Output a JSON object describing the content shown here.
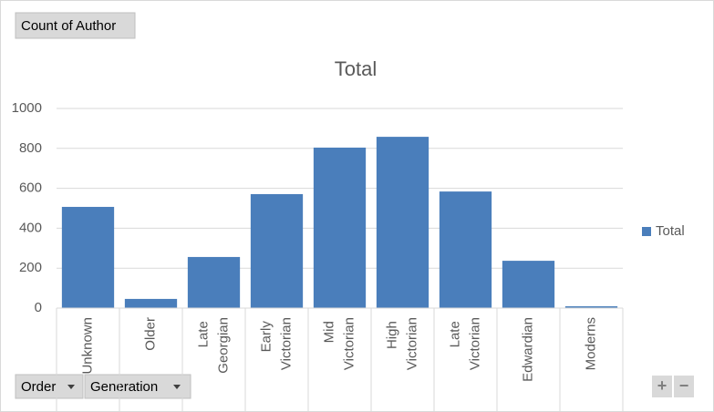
{
  "chart_data": {
    "type": "bar",
    "title": "Total",
    "categories": [
      "Unknown",
      "Older",
      "Late Georgian",
      "Early Victorian",
      "Mid Victorian",
      "High Victorian",
      "Late Victorian",
      "Edwardian",
      "Moderns"
    ],
    "series": [
      {
        "name": "Total",
        "color": "#4a7ebb",
        "values": [
          507,
          46,
          256,
          571,
          804,
          858,
          584,
          237,
          9
        ]
      }
    ],
    "ylim": [
      0,
      1000
    ],
    "yticks": [
      0,
      200,
      400,
      600,
      800,
      1000
    ],
    "grid": true,
    "legend": "right"
  },
  "field_buttons": {
    "value": "Count of Author",
    "axis": [
      "Order",
      "Generation"
    ]
  },
  "zoom_buttons": [
    "+",
    "−"
  ]
}
